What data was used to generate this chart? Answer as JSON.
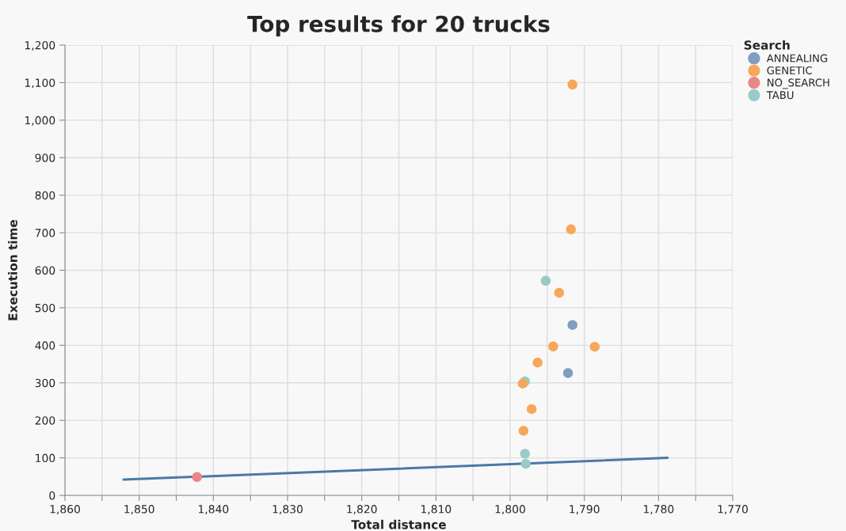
{
  "chart_data": {
    "type": "scatter",
    "title": "Top results for 20 trucks",
    "xlabel": "Total distance",
    "ylabel": "Execution time",
    "legend_title": "Search",
    "series": [
      {
        "name": "ANNEALING",
        "color": "#809ec0",
        "x": [
          1791.6,
          1792.2
        ],
        "values": [
          454,
          326
        ]
      },
      {
        "name": "GENETIC",
        "color": "#f6a75b",
        "x": [
          1791.6,
          1791.8,
          1793.4,
          1794.2,
          1788.6,
          1796.3,
          1798.3,
          1797.1,
          1798.2
        ],
        "values": [
          1095,
          709,
          540,
          397,
          396,
          354,
          298,
          230,
          172
        ]
      },
      {
        "name": "NO_SEARCH",
        "color": "#ea8786",
        "x": [
          1842.2
        ],
        "values": [
          49
        ]
      },
      {
        "name": "TABU",
        "color": "#9acac7",
        "x": [
          1795.2,
          1798.0,
          1798.0,
          1797.9
        ],
        "values": [
          572,
          304,
          111,
          84
        ]
      },
      {
        "type": "line",
        "color": "#4c78a8",
        "x": [
          1852.1,
          1778.8
        ],
        "values": [
          42,
          100
        ],
        "marker": "none"
      }
    ],
    "xlim": [
      1860,
      1770
    ],
    "xticks": [
      {
        "value": 1860,
        "label": "1,860"
      },
      {
        "value": 1855,
        "label": null
      },
      {
        "value": 1850,
        "label": "1,850"
      },
      {
        "value": 1845,
        "label": null
      },
      {
        "value": 1840,
        "label": "1,840"
      },
      {
        "value": 1835,
        "label": null
      },
      {
        "value": 1830,
        "label": "1,830"
      },
      {
        "value": 1825,
        "label": null
      },
      {
        "value": 1820,
        "label": "1,820"
      },
      {
        "value": 1815,
        "label": null
      },
      {
        "value": 1810,
        "label": "1,810"
      },
      {
        "value": 1805,
        "label": null
      },
      {
        "value": 1800,
        "label": "1,800"
      },
      {
        "value": 1795,
        "label": null
      },
      {
        "value": 1790,
        "label": "1,790"
      },
      {
        "value": 1785,
        "label": null
      },
      {
        "value": 1780,
        "label": "1,780"
      },
      {
        "value": 1775,
        "label": null
      },
      {
        "value": 1770,
        "label": "1,770"
      }
    ],
    "ylim": [
      0,
      1200
    ],
    "yticks": [
      0,
      100,
      200,
      300,
      400,
      500,
      600,
      700,
      800,
      900,
      {
        "value": 1000,
        "label": "1,000"
      },
      {
        "value": 1100,
        "label": "1,100"
      },
      {
        "value": 1200,
        "label": "1,200"
      }
    ],
    "grid": true,
    "legend": "top right",
    "marker": "circle"
  }
}
